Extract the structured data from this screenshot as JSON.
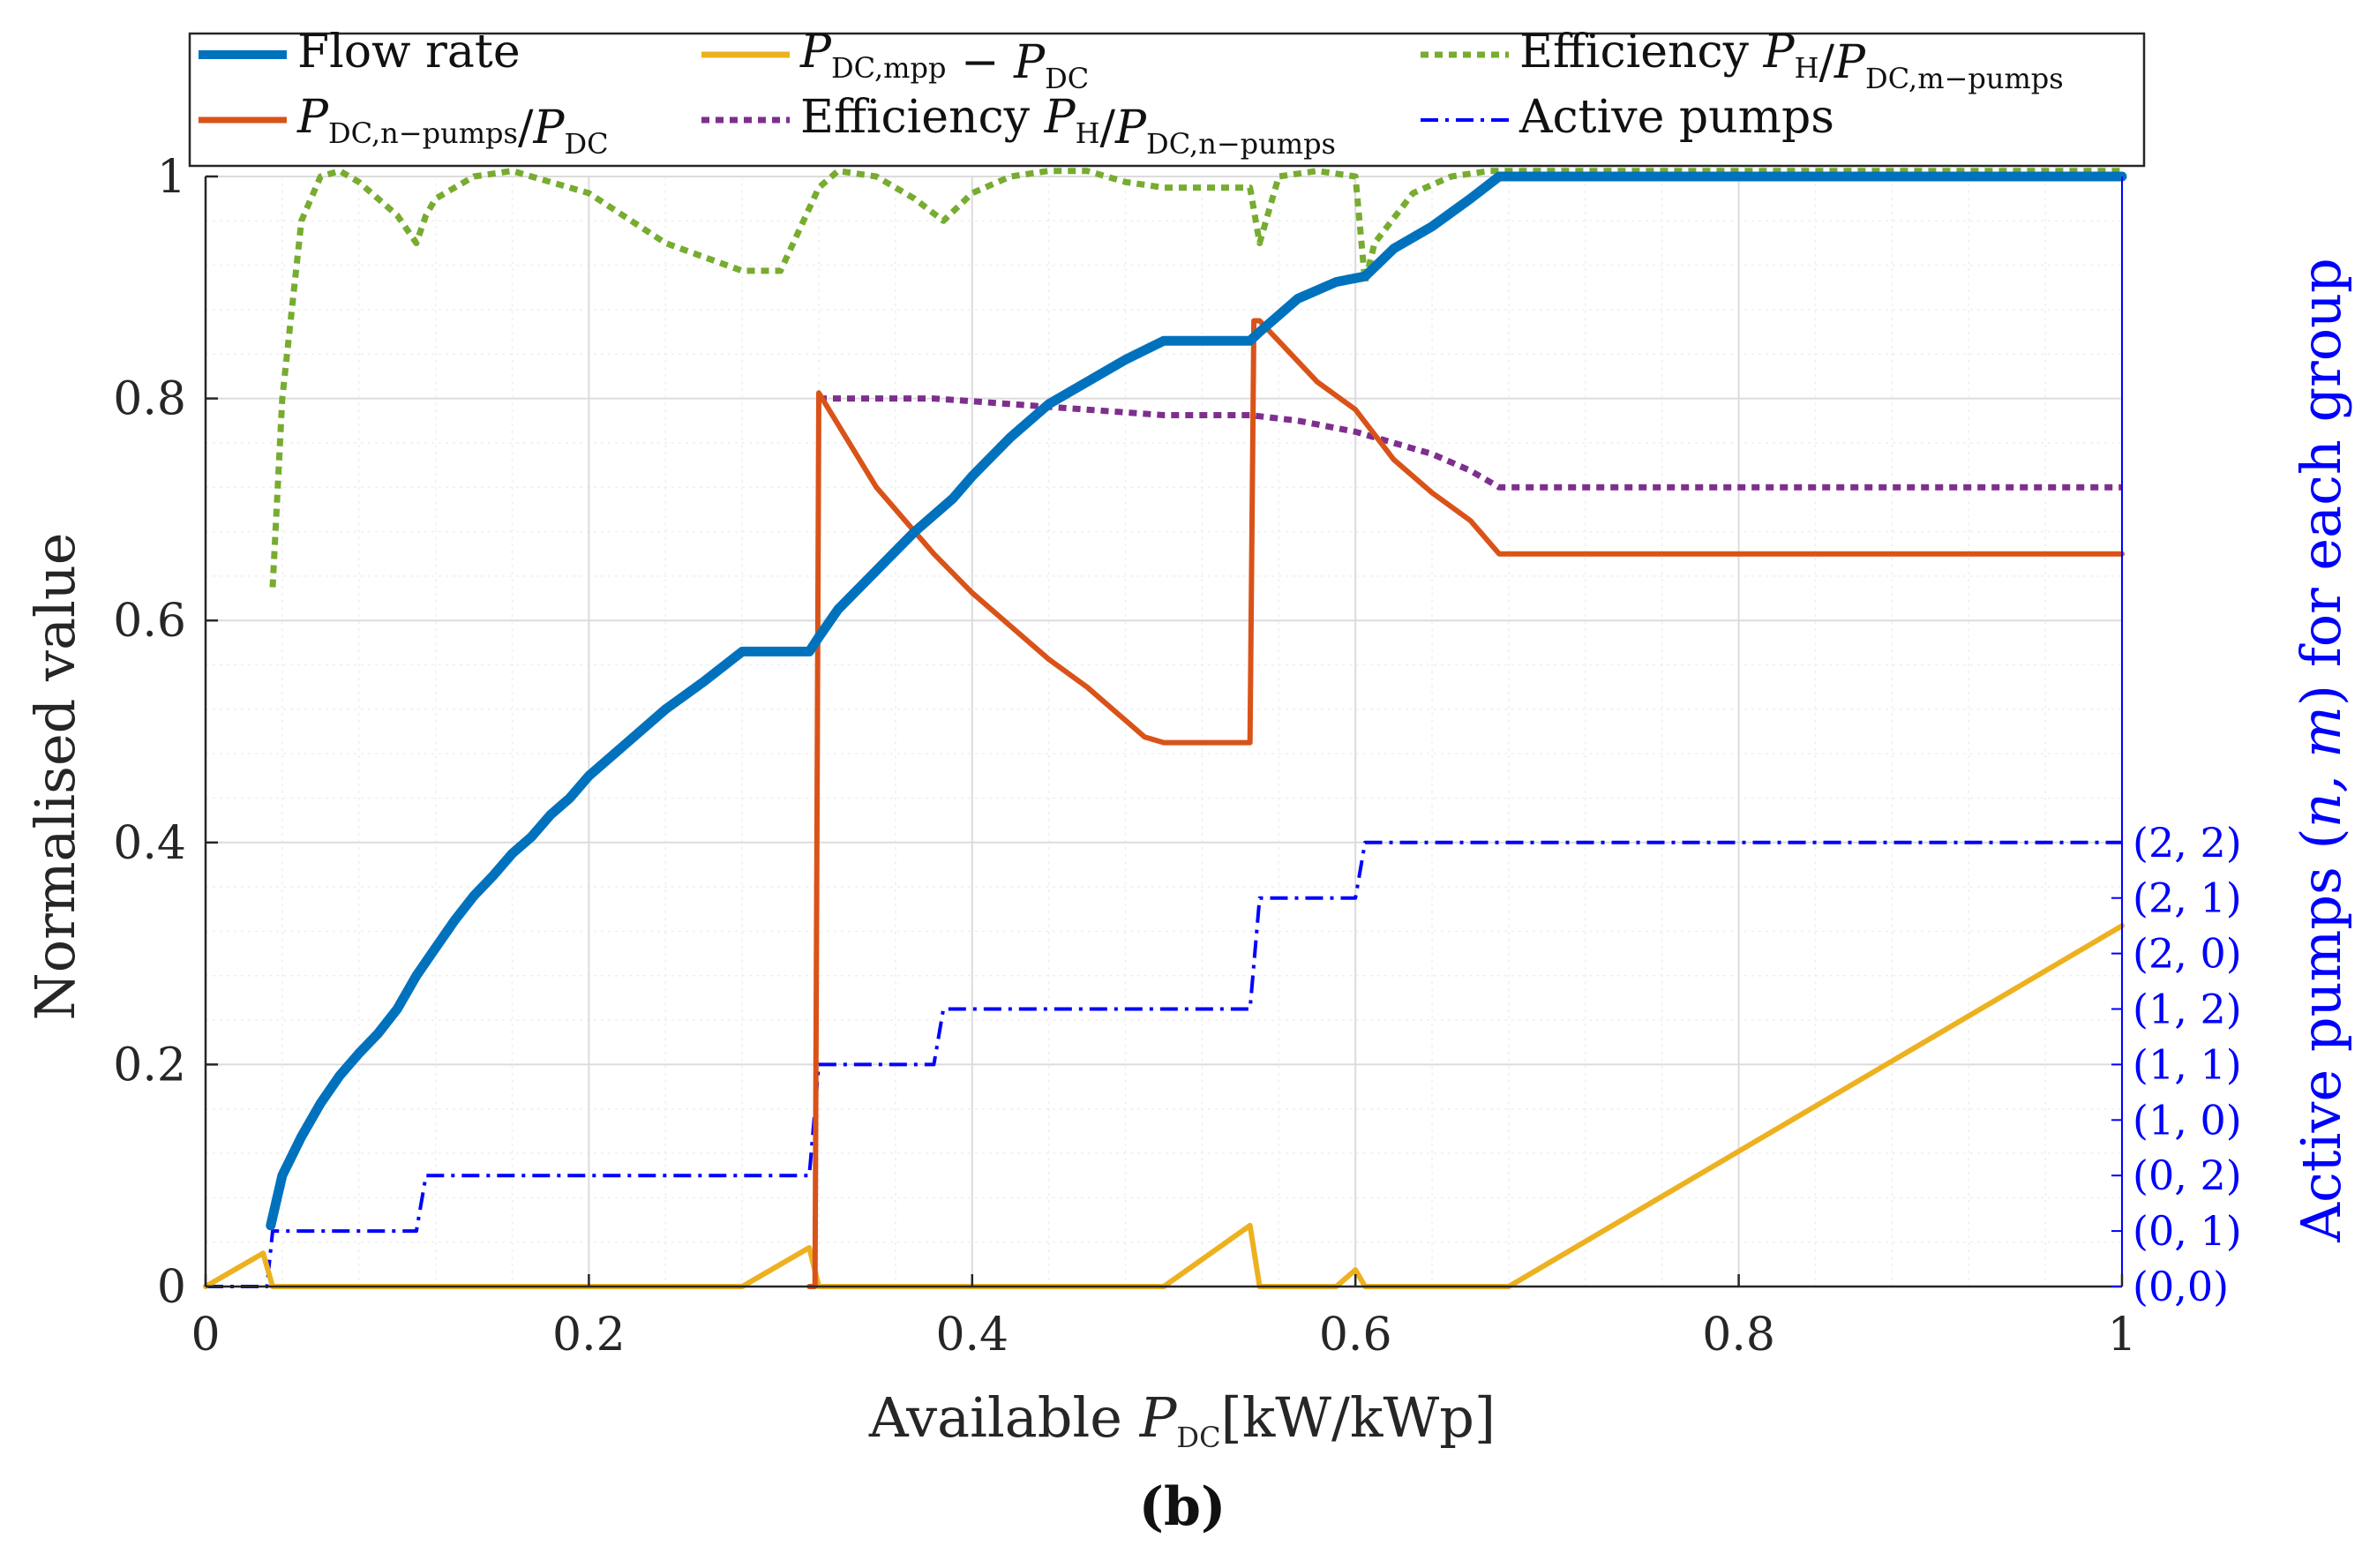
{
  "chart_data": {
    "type": "line",
    "xlabel": "Available P_DC[kW/kWp]",
    "xlabel_parts": {
      "pre": "Available ",
      "var": "P",
      "sub": "DC",
      "post": "[kW/kWp]"
    },
    "ylabel": "Normalised value",
    "y2label": "Active pumps (n, m) for each group",
    "y2label_parts": {
      "pre": "Active pumps ",
      "paren_open": "(",
      "var": "n, m",
      "paren_close": ")",
      "post": " for each group"
    },
    "panel_label": "(b)",
    "xlim": [
      0,
      1
    ],
    "ylim": [
      0,
      1
    ],
    "grid": true,
    "legend_position": "top",
    "xticks": [
      "0",
      "0.2",
      "0.4",
      "0.6",
      "0.8",
      "1"
    ],
    "yticks": [
      "0",
      "0.2",
      "0.4",
      "0.6",
      "0.8",
      "1"
    ],
    "y2_ticks": [
      "(0,0)",
      "(0, 1)",
      "(0, 2)",
      "(1, 0)",
      "(1, 1)",
      "(1, 2)",
      "(2, 0)",
      "(2, 1)",
      "(2, 2)"
    ],
    "legend": [
      {
        "key": "flow",
        "label": "Flow rate"
      },
      {
        "key": "mpp",
        "label": "P_DC,mpp − P_DC"
      },
      {
        "key": "effm",
        "label": "Efficiency P_H/P_DC,m−pumps"
      },
      {
        "key": "ratio",
        "label": "P_DC,n−pumps/P_DC"
      },
      {
        "key": "effn",
        "label": "Efficiency P_H/P_DC,n−pumps"
      },
      {
        "key": "active",
        "label": "Active pumps"
      }
    ],
    "series": [
      {
        "key": "flow",
        "color": "#0072BD",
        "style": "solid",
        "x": [
          0.034,
          0.04,
          0.05,
          0.06,
          0.07,
          0.08,
          0.09,
          0.1,
          0.11,
          0.12,
          0.13,
          0.14,
          0.15,
          0.16,
          0.17,
          0.18,
          0.19,
          0.2,
          0.22,
          0.24,
          0.26,
          0.28,
          0.3,
          0.315,
          0.32,
          0.33,
          0.35,
          0.37,
          0.39,
          0.4,
          0.42,
          0.44,
          0.46,
          0.48,
          0.5,
          0.52,
          0.545,
          0.55,
          0.57,
          0.59,
          0.605,
          0.62,
          0.64,
          0.66,
          0.675,
          0.7,
          0.8,
          0.9,
          1.0
        ],
        "y": [
          0.055,
          0.1,
          0.135,
          0.165,
          0.19,
          0.21,
          0.228,
          0.25,
          0.28,
          0.305,
          0.33,
          0.352,
          0.37,
          0.39,
          0.405,
          0.425,
          0.44,
          0.46,
          0.49,
          0.52,
          0.545,
          0.572,
          0.572,
          0.572,
          0.585,
          0.61,
          0.645,
          0.68,
          0.71,
          0.73,
          0.765,
          0.795,
          0.815,
          0.835,
          0.852,
          0.852,
          0.852,
          0.86,
          0.89,
          0.905,
          0.91,
          0.935,
          0.955,
          0.98,
          1.0,
          1.0,
          1.0,
          1.0,
          1.0
        ]
      },
      {
        "key": "mpp",
        "color": "#EDB120",
        "style": "solid",
        "x": [
          0,
          0.03,
          0.035,
          0.28,
          0.315,
          0.32,
          0.5,
          0.545,
          0.55,
          0.59,
          0.6,
          0.605,
          0.68,
          1.0
        ],
        "y": [
          0,
          0.03,
          0,
          0,
          0.035,
          0,
          0,
          0.055,
          0,
          0,
          0.015,
          0,
          0,
          0.325
        ]
      },
      {
        "key": "effm",
        "color": "#77AC30",
        "style": "dotted",
        "x": [
          0.035,
          0.04,
          0.05,
          0.06,
          0.07,
          0.08,
          0.09,
          0.1,
          0.11,
          0.115,
          0.12,
          0.14,
          0.16,
          0.18,
          0.2,
          0.24,
          0.28,
          0.3,
          0.32,
          0.33,
          0.35,
          0.37,
          0.385,
          0.4,
          0.42,
          0.44,
          0.46,
          0.48,
          0.5,
          0.53,
          0.545,
          0.55,
          0.56,
          0.58,
          0.6,
          0.605,
          0.61,
          0.63,
          0.65,
          0.67,
          0.7,
          1.0
        ],
        "y": [
          0.63,
          0.8,
          0.96,
          1.0,
          1.005,
          0.995,
          0.98,
          0.965,
          0.94,
          0.965,
          0.98,
          1.0,
          1.005,
          0.995,
          0.985,
          0.94,
          0.915,
          0.915,
          0.99,
          1.005,
          1.0,
          0.98,
          0.96,
          0.985,
          1.0,
          1.005,
          1.005,
          0.995,
          0.99,
          0.99,
          0.99,
          0.94,
          1.0,
          1.005,
          1.0,
          0.905,
          0.94,
          0.985,
          1.0,
          1.005,
          1.005,
          1.005
        ]
      },
      {
        "key": "ratio",
        "color": "#D95319",
        "style": "solid",
        "x": [
          0.315,
          0.318,
          0.32,
          0.35,
          0.38,
          0.4,
          0.42,
          0.44,
          0.46,
          0.48,
          0.49,
          0.5,
          0.545,
          0.547,
          0.55,
          0.58,
          0.6,
          0.62,
          0.64,
          0.66,
          0.675,
          0.7,
          1.0
        ],
        "y": [
          0,
          0,
          0.805,
          0.72,
          0.66,
          0.625,
          0.595,
          0.565,
          0.54,
          0.51,
          0.495,
          0.49,
          0.49,
          0.87,
          0.87,
          0.815,
          0.79,
          0.745,
          0.715,
          0.69,
          0.66,
          0.66,
          0.66
        ]
      },
      {
        "key": "effn",
        "color": "#7E2F8E",
        "style": "dotted",
        "x": [
          0.32,
          0.38,
          0.42,
          0.46,
          0.5,
          0.545,
          0.57,
          0.6,
          0.62,
          0.64,
          0.66,
          0.675,
          0.7,
          1.0
        ],
        "y": [
          0.8,
          0.8,
          0.795,
          0.79,
          0.785,
          0.785,
          0.78,
          0.77,
          0.76,
          0.75,
          0.735,
          0.72,
          0.72,
          0.72
        ]
      },
      {
        "key": "active",
        "color": "#0000FF",
        "style": "dashdot",
        "x": [
          0,
          0.032,
          0.035,
          0.11,
          0.115,
          0.315,
          0.32,
          0.38,
          0.385,
          0.545,
          0.55,
          0.6,
          0.605,
          1.0
        ],
        "y": [
          0,
          0,
          0.05,
          0.05,
          0.1,
          0.1,
          0.2,
          0.2,
          0.25,
          0.25,
          0.35,
          0.35,
          0.4,
          0.4
        ]
      }
    ]
  }
}
